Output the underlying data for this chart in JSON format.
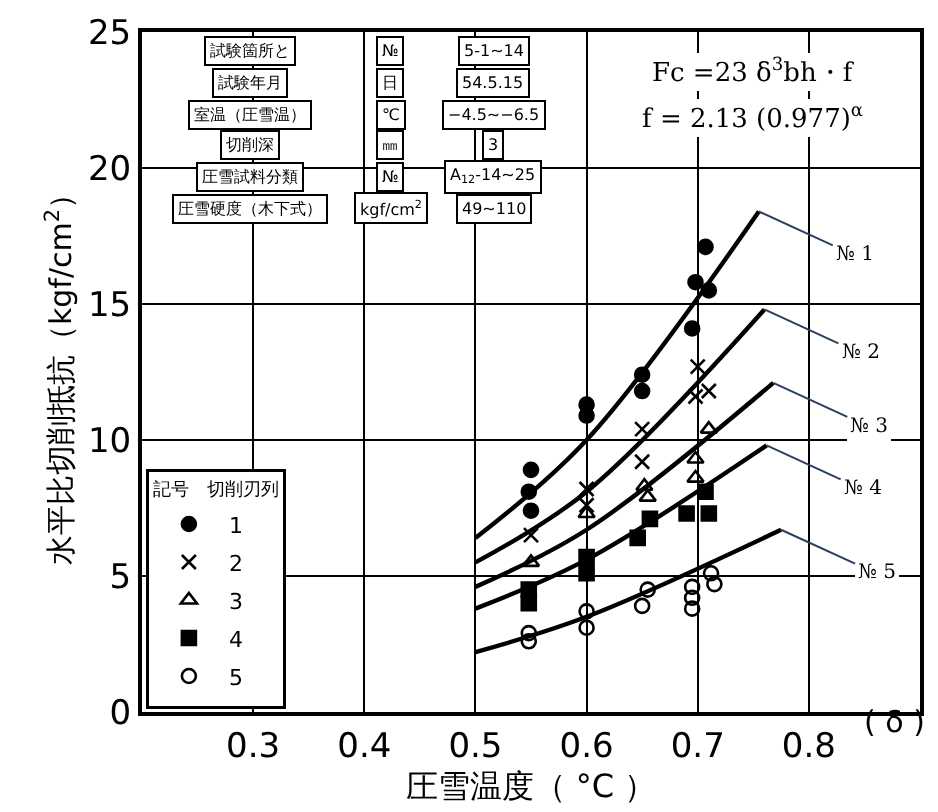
{
  "chart_data": {
    "type": "scatter",
    "xlabel": "圧雪温度（ °C ）",
    "ylabel": "水平比切削抵抗（kgf/cm$^{2}$）",
    "xlim": [
      0.2,
      0.9
    ],
    "xticks": [
      0.3,
      0.4,
      0.5,
      0.6,
      0.7,
      0.8
    ],
    "ylim": [
      0,
      25
    ],
    "yticks": [
      0,
      5,
      10,
      15,
      20,
      25
    ],
    "grid": true,
    "legend": "bottom left",
    "legend_title": "記号　切削刃列",
    "series": [
      {
        "name": "1",
        "color": "#000000",
        "marker": "circle",
        "x": [
          0.707,
          0.698,
          0.71,
          0.695,
          0.65,
          0.65,
          0.6,
          0.6,
          0.55,
          0.548,
          0.55
        ],
        "values": [
          17.1,
          15.8,
          15.5,
          14.1,
          12.4,
          11.8,
          11.3,
          10.9,
          8.9,
          8.1,
          7.4
        ]
      },
      {
        "name": "2",
        "color": "#000000",
        "marker": "cross",
        "x": [
          0.7,
          0.71,
          0.698,
          0.65,
          0.65,
          0.6,
          0.6,
          0.55
        ],
        "values": [
          12.7,
          11.8,
          11.6,
          10.4,
          9.2,
          8.2,
          7.6,
          6.5
        ]
      },
      {
        "name": "3",
        "color": "#000000",
        "marker": "triangle-open",
        "x": [
          0.71,
          0.698,
          0.698,
          0.652,
          0.655,
          0.6,
          0.55
        ],
        "values": [
          10.4,
          9.3,
          8.6,
          8.3,
          7.9,
          7.3,
          5.5
        ]
      },
      {
        "name": "4",
        "color": "#000000",
        "marker": "square",
        "x": [
          0.707,
          0.69,
          0.71,
          0.657,
          0.646,
          0.6,
          0.6,
          0.548,
          0.548
        ],
        "values": [
          8.1,
          7.3,
          7.3,
          7.1,
          6.4,
          5.7,
          5.1,
          4.5,
          4.0
        ]
      },
      {
        "name": "5",
        "color": "#000000",
        "marker": "circle-open",
        "x": [
          0.712,
          0.715,
          0.695,
          0.695,
          0.695,
          0.655,
          0.65,
          0.6,
          0.6,
          0.548,
          0.548
        ],
        "values": [
          5.1,
          4.7,
          4.6,
          4.2,
          3.8,
          4.5,
          3.9,
          3.7,
          3.1,
          2.9,
          2.6
        ]
      },
      {
        "type": "line",
        "color": "#000000",
        "marker": "none",
        "x": [
          0.5,
          0.6,
          0.755
        ],
        "values": [
          6.4,
          10.0,
          18.4
        ]
      },
      {
        "type": "line",
        "color": "#000000",
        "marker": "none",
        "x": [
          0.5,
          0.6,
          0.76
        ],
        "values": [
          5.5,
          8.1,
          14.8
        ]
      },
      {
        "type": "line",
        "color": "#000000",
        "marker": "none",
        "x": [
          0.5,
          0.6,
          0.768
        ],
        "values": [
          4.6,
          6.7,
          12.1
        ]
      },
      {
        "type": "line",
        "color": "#000000",
        "marker": "none",
        "x": [
          0.5,
          0.6,
          0.762
        ],
        "values": [
          3.8,
          5.6,
          9.8
        ]
      },
      {
        "type": "line",
        "color": "#000000",
        "marker": "none",
        "x": [
          0.5,
          0.6,
          0.775
        ],
        "values": [
          2.2,
          3.5,
          6.7
        ]
      }
    ],
    "annotations": [
      "試験箇所と",
      "№",
      "5-1~14",
      "試験年月",
      "日",
      "54.5.15",
      "室温（圧雪温）",
      "℃",
      "−4.5~−6.5",
      "切削深",
      "㎜",
      "3",
      "圧雪試料分類",
      "№",
      "A$_{12}$-14~25",
      "圧雪硬度（木下式）",
      "kgf/cm$^{2}$",
      "49~110",
      "Fc =23 δ$^{3}$bh・f",
      "f = 2.13 (0.977)$^{α}$",
      "( δ )",
      {
        "text": "№ 1",
        "x": 0.755,
        "y": 18.4
      },
      {
        "text": "№ 2",
        "x": 0.76,
        "y": 14.8
      },
      {
        "text": "№ 3",
        "x": 0.768,
        "y": 12.1
      },
      {
        "text": "№ 4",
        "x": 0.762,
        "y": 9.8
      },
      {
        "text": "№ 5",
        "x": 0.775,
        "y": 6.7
      }
    ]
  }
}
